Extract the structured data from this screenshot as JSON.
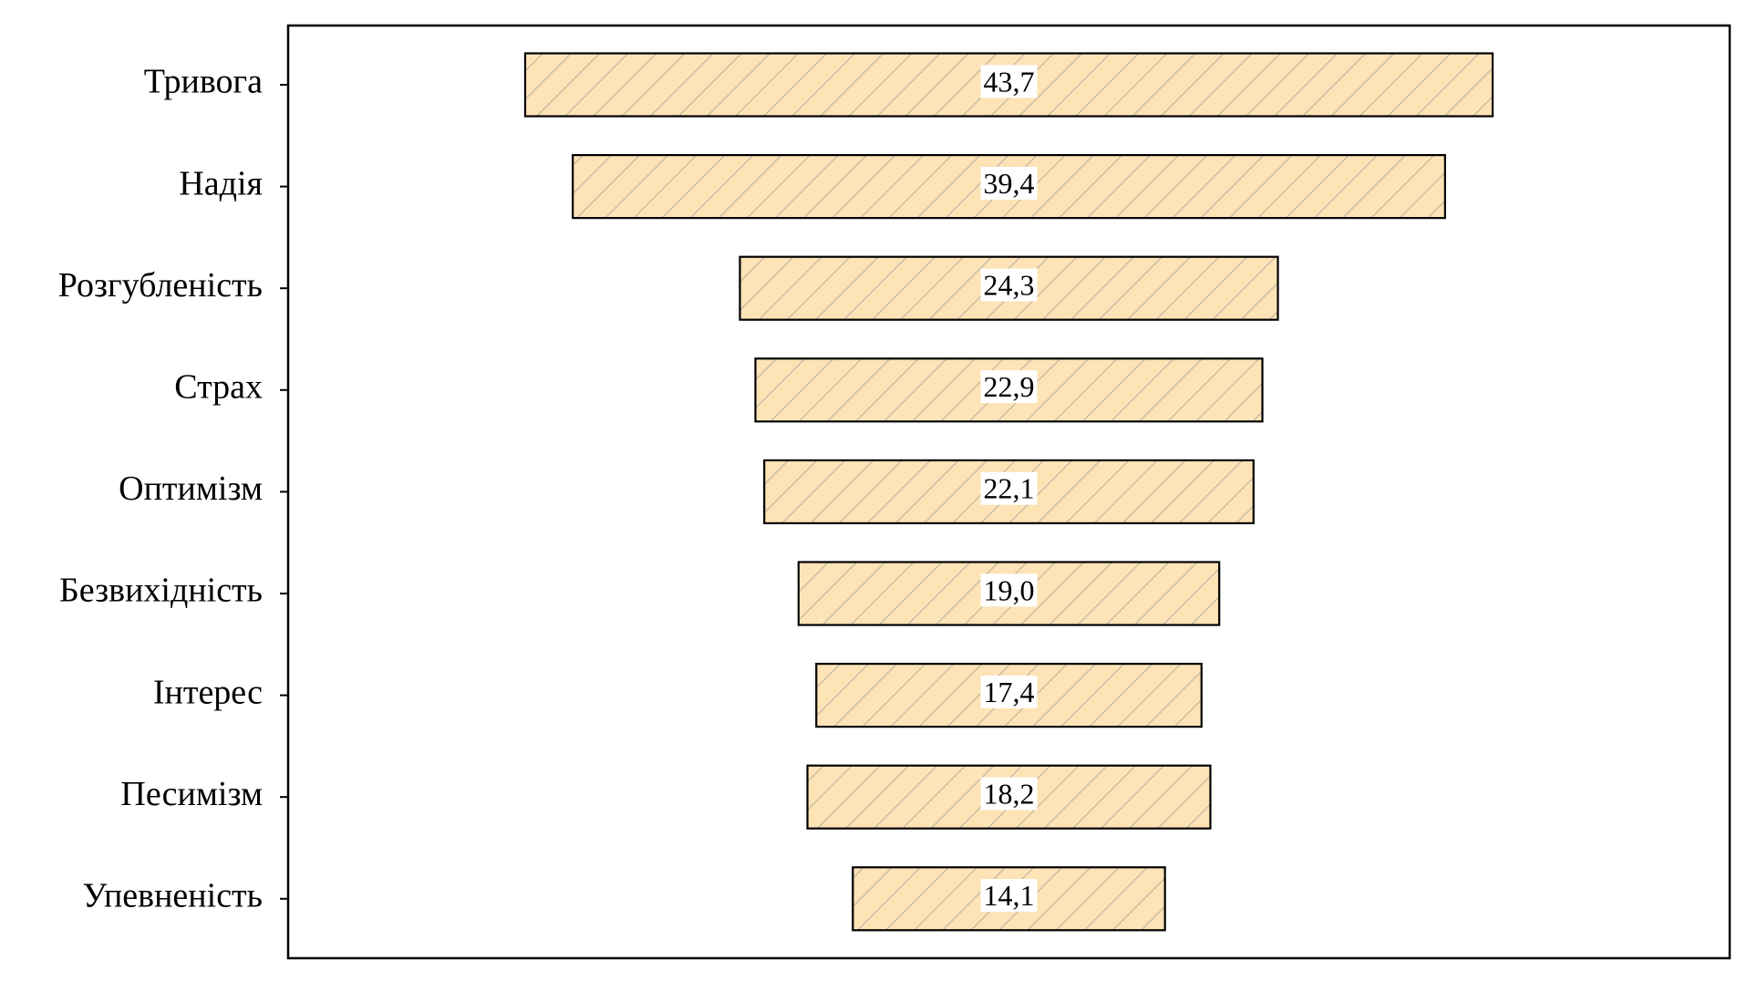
{
  "chart_data": {
    "type": "funnel",
    "categories": [
      "Тривога",
      "Надія",
      "Розгубленість",
      "Страх",
      "Оптимізм",
      "Безвихідність",
      "Інтерес",
      "Песимізм",
      "Упевненість"
    ],
    "values": [
      43.7,
      39.4,
      24.3,
      22.9,
      22.1,
      19.0,
      17.4,
      18.2,
      14.1
    ],
    "value_labels": [
      "43,7",
      "39,4",
      "24,3",
      "22,9",
      "22,1",
      "19,0",
      "17,4",
      "18,2",
      "14,1"
    ],
    "color": "#fde3b5",
    "hatch_color": "#a0a0a0"
  }
}
